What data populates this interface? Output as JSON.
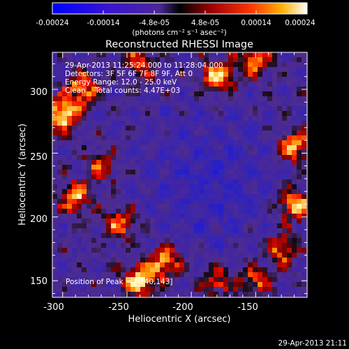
{
  "chart_data": {
    "type": "heatmap",
    "title": "Reconstructed RHESSI Image",
    "xlabel": "Heliocentric X (arcsec)",
    "ylabel": "Heliocentric Y (arcsec)",
    "xlim": [
      -308,
      -110
    ],
    "ylim": [
      137,
      329
    ],
    "xticks": [
      -300,
      -250,
      -200,
      -150
    ],
    "yticks": [
      150,
      200,
      250,
      300
    ],
    "colorbar": {
      "label": "(photons cm⁻² s⁻¹ asec⁻²)",
      "range": [
        -0.00024,
        0.00024
      ],
      "ticks": [
        "-0.00024",
        "-0.00014",
        "-4.8e-05",
        "4.8e-05",
        "0.00014",
        "0.00024"
      ]
    },
    "annotations": [
      "29-Apr-2013 11:25:24.000 to 11:28:04.000",
      "Detectors: 3F 5F 6F 7F 8F 9F, Att 0",
      "Energy Range: 12.0 - 25.0 keV",
      "Clean    Total counts: 4.47E+03"
    ],
    "peak_text": "Position of Peak = [-240,143]",
    "bright_regions": [
      {
        "x": -300,
        "y": 280,
        "level": 1.0
      },
      {
        "x": -285,
        "y": 300,
        "level": 0.8
      },
      {
        "x": -290,
        "y": 215,
        "level": 0.75
      },
      {
        "x": -270,
        "y": 240,
        "level": 0.6
      },
      {
        "x": -240,
        "y": 150,
        "level": 1.0
      },
      {
        "x": -220,
        "y": 165,
        "level": 0.85
      },
      {
        "x": -180,
        "y": 150,
        "level": 0.6
      },
      {
        "x": -255,
        "y": 195,
        "level": 0.7
      },
      {
        "x": -180,
        "y": 310,
        "level": 0.9
      },
      {
        "x": -150,
        "y": 322,
        "level": 0.75
      },
      {
        "x": -120,
        "y": 255,
        "level": 0.9
      },
      {
        "x": -120,
        "y": 210,
        "level": 0.95
      },
      {
        "x": -130,
        "y": 175,
        "level": 0.7
      },
      {
        "x": -150,
        "y": 150,
        "level": 0.6
      },
      {
        "x": -240,
        "y": 320,
        "level": 0.55
      }
    ]
  },
  "footer": {
    "timestamp": "29-Apr-2013 21:11"
  }
}
